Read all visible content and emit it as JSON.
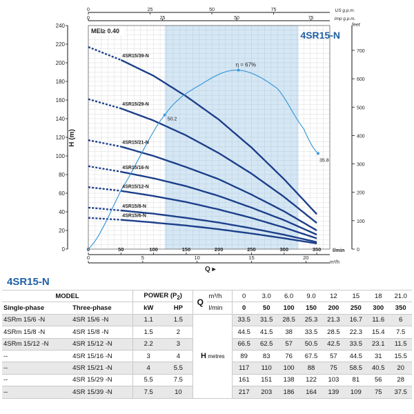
{
  "chart_data": {
    "type": "line",
    "title": "4SR15-N",
    "badge": "MEI≥ 0.40",
    "xlabel": "Q",
    "ylabel": "H (m)",
    "x_unit_lmin": "l/min",
    "x_unit_m3h": "m³/h",
    "top_unit_usgpm": "US g.p.m.",
    "top_unit_impgpm": "Imp g.p.m.",
    "right_unit": "feet",
    "xlim": [
      0,
      370
    ],
    "ylim": [
      0,
      240
    ],
    "x_ticks_lmin": [
      0,
      50,
      100,
      150,
      200,
      250,
      300,
      350
    ],
    "x_ticks_m3h": [
      0,
      5,
      10,
      15,
      20
    ],
    "y_ticks": [
      0,
      20,
      40,
      60,
      80,
      100,
      120,
      140,
      160,
      180,
      200,
      220,
      240
    ],
    "top_ticks_us": [
      0,
      25,
      50,
      75
    ],
    "top_ticks_imp": [
      0,
      25,
      50,
      75
    ],
    "right_ticks_feet": [
      0,
      100,
      200,
      300,
      400,
      500,
      600,
      700
    ],
    "shaded_range_lmin": [
      117,
      322
    ],
    "flow_lmin": [
      0,
      50,
      100,
      150,
      200,
      250,
      300,
      350
    ],
    "series": [
      {
        "name": "4SR15/39-N",
        "values": [
          217,
          203,
          186,
          164,
          139,
          109,
          75,
          37.5
        ]
      },
      {
        "name": "4SR15/29-N",
        "values": [
          161,
          151,
          138,
          122,
          103,
          81,
          56,
          28
        ]
      },
      {
        "name": "4SR15/21-N",
        "values": [
          117,
          110,
          100,
          88,
          75,
          58.5,
          40.5,
          20
        ]
      },
      {
        "name": "4SR15/16-N",
        "values": [
          89,
          83,
          76,
          67.5,
          57,
          44.5,
          31,
          15.5
        ]
      },
      {
        "name": "4SR15/12-N",
        "values": [
          66.5,
          62.5,
          57,
          50.5,
          42.5,
          33.5,
          23.1,
          11.5
        ]
      },
      {
        "name": "4SR15/8-N",
        "values": [
          44.5,
          41.5,
          38,
          33.5,
          28.5,
          22.3,
          15.4,
          7.5
        ]
      },
      {
        "name": "4SR15/6-N",
        "values": [
          33.5,
          31.5,
          28.5,
          25.3,
          21.3,
          16.7,
          11.6,
          6
        ]
      }
    ],
    "efficiency": {
      "name": "η",
      "peak_label": "η = 67%",
      "x": [
        0,
        50,
        117,
        175,
        230,
        290,
        330,
        352
      ],
      "y_pct": [
        0,
        22,
        50.2,
        62,
        67,
        60,
        45,
        35.8
      ],
      "labels": [
        "50.2",
        "35.8"
      ]
    }
  },
  "table": {
    "section_title": "4SR15-N",
    "model_header": "MODEL",
    "power_header": "POWER (P",
    "power_sub": "2",
    "power_close": ")",
    "single_phase_header": "Single-phase",
    "three_phase_header": "Three-phase",
    "kw_header": "kW",
    "hp_header": "HP",
    "q_label": "Q",
    "q_unit_m3h": "m³/h",
    "q_unit_lmin": "l/min",
    "h_label": "H",
    "h_unit": "metres",
    "flows_m3h": [
      "0",
      "3.0",
      "6.0",
      "9.0",
      "12",
      "15",
      "18",
      "21.0"
    ],
    "flows_lmin": [
      "0",
      "50",
      "100",
      "150",
      "200",
      "250",
      "300",
      "350"
    ],
    "rows": [
      {
        "single": "4SRm 15/6  -N",
        "three": "4SR 15/6  -N",
        "kw": "1.1",
        "hp": "1.5",
        "h": [
          "33.5",
          "31.5",
          "28.5",
          "25.3",
          "21.3",
          "16.7",
          "11.6",
          "6"
        ]
      },
      {
        "single": "4SRm 15/8  -N",
        "three": "4SR 15/8  -N",
        "kw": "1.5",
        "hp": "2",
        "h": [
          "44.5",
          "41.5",
          "38",
          "33.5",
          "28.5",
          "22.3",
          "15.4",
          "7.5"
        ]
      },
      {
        "single": "4SRm 15/12 -N",
        "three": "4SR 15/12 -N",
        "kw": "2.2",
        "hp": "3",
        "h": [
          "66.5",
          "62.5",
          "57",
          "50.5",
          "42.5",
          "33.5",
          "23.1",
          "11.5"
        ]
      },
      {
        "single": "--",
        "three": "4SR 15/16 -N",
        "kw": "3",
        "hp": "4",
        "h": [
          "89",
          "83",
          "76",
          "67.5",
          "57",
          "44.5",
          "31",
          "15.5"
        ]
      },
      {
        "single": "--",
        "three": "4SR 15/21 -N",
        "kw": "4",
        "hp": "5.5",
        "h": [
          "117",
          "110",
          "100",
          "88",
          "75",
          "58.5",
          "40.5",
          "20"
        ]
      },
      {
        "single": "--",
        "three": "4SR 15/29 -N",
        "kw": "5.5",
        "hp": "7.5",
        "h": [
          "161",
          "151",
          "138",
          "122",
          "103",
          "81",
          "56",
          "28"
        ]
      },
      {
        "single": "--",
        "three": "4SR 15/39 -N",
        "kw": "7.5",
        "hp": "10",
        "h": [
          "217",
          "203",
          "186",
          "164",
          "139",
          "109",
          "75",
          "37.5"
        ]
      }
    ]
  },
  "colors": {
    "curve": "#1c3f8a",
    "efficiency": "#3a9ad9",
    "shade": "#cfe3f2",
    "title": "#1f5fa6",
    "axis": "#111111"
  }
}
